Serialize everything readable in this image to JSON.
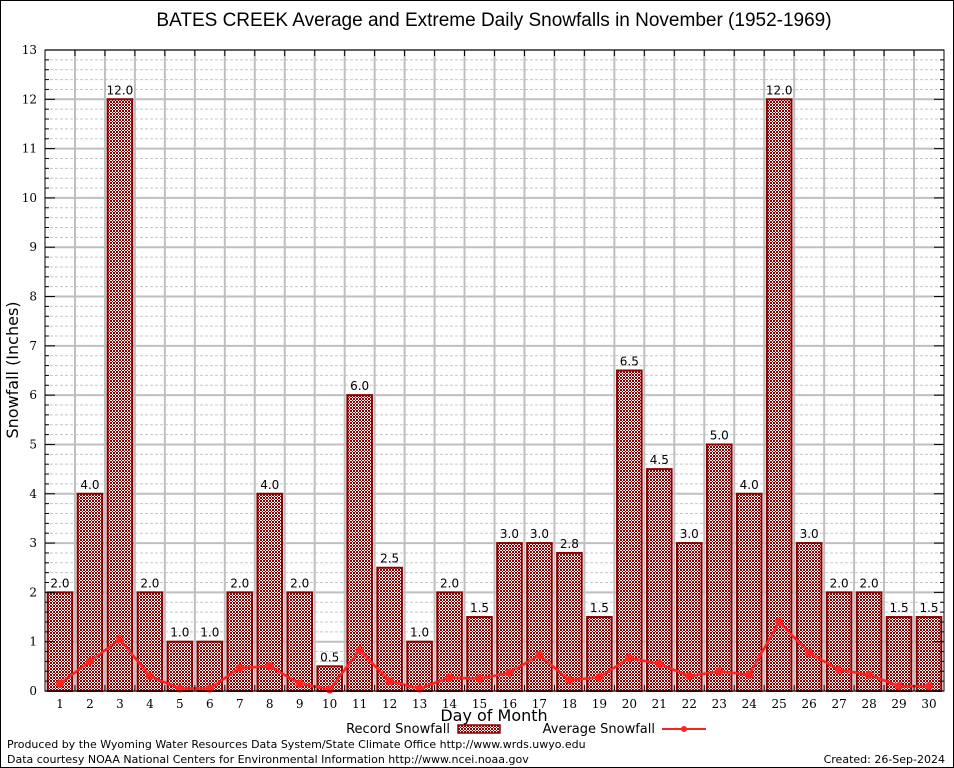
{
  "chart_data": {
    "type": "bar",
    "title": "BATES CREEK Average and Extreme Daily Snowfalls in November (1952-1969)",
    "xlabel": "Day of Month",
    "ylabel": "Snowfall (Inches)",
    "ylim": [
      0,
      13
    ],
    "yticks": [
      0,
      1,
      2,
      3,
      4,
      5,
      6,
      7,
      8,
      9,
      10,
      11,
      12,
      13
    ],
    "grid": true,
    "categories": [
      "1",
      "2",
      "3",
      "4",
      "5",
      "6",
      "7",
      "8",
      "9",
      "10",
      "11",
      "12",
      "13",
      "14",
      "15",
      "16",
      "17",
      "18",
      "19",
      "20",
      "21",
      "22",
      "23",
      "24",
      "25",
      "26",
      "27",
      "28",
      "29",
      "30"
    ],
    "series": [
      {
        "name": "Record Snowfall",
        "type": "bar",
        "color": "#8b0000",
        "values": [
          2.0,
          4.0,
          12.0,
          2.0,
          1.0,
          1.0,
          2.0,
          4.0,
          2.0,
          0.5,
          6.0,
          2.5,
          1.0,
          2.0,
          1.5,
          3.0,
          3.0,
          2.8,
          1.5,
          6.5,
          4.5,
          3.0,
          5.0,
          4.0,
          12.0,
          3.0,
          2.0,
          2.0,
          1.5,
          1.5
        ],
        "labels": [
          "2.0",
          "4.0",
          "12.0",
          "2.0",
          "1.0",
          "1.0",
          "2.0",
          "4.0",
          "2.0",
          "0.5",
          "6.0",
          "2.5",
          "1.0",
          "2.0",
          "1.5",
          "3.0",
          "3.0",
          "2.8",
          "1.5",
          "6.5",
          "4.5",
          "3.0",
          "5.0",
          "4.0",
          "12.0",
          "3.0",
          "2.0",
          "2.0",
          "1.5",
          "1.5"
        ]
      },
      {
        "name": "Average Snowfall",
        "type": "line",
        "color": "#ff2020",
        "values": [
          0.15,
          0.6,
          1.05,
          0.3,
          0.05,
          0.05,
          0.47,
          0.5,
          0.15,
          0.03,
          0.83,
          0.2,
          0.05,
          0.27,
          0.25,
          0.37,
          0.73,
          0.22,
          0.28,
          0.67,
          0.55,
          0.3,
          0.4,
          0.33,
          1.4,
          0.77,
          0.43,
          0.33,
          0.1,
          0.1
        ]
      }
    ],
    "legend": {
      "placement": "bottom-center",
      "items": [
        "Record Snowfall",
        "Average Snowfall"
      ]
    },
    "footer": {
      "line1": "Produced by the Wyoming Water Resources Data System/State Climate Office http://www.wrds.uwyo.edu",
      "line2": "Data courtesy NOAA National Centers for Environmental Information http://www.ncei.noaa.gov",
      "created": "Created:  26-Sep-2024"
    }
  }
}
